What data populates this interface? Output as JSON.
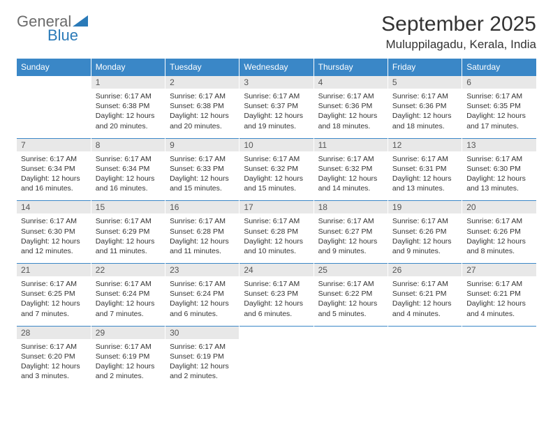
{
  "brand": {
    "part1": "General",
    "part2": "Blue"
  },
  "title": "September 2025",
  "location": "Muluppilagadu, Kerala, India",
  "colors": {
    "header_bg": "#3a87c7",
    "header_text": "#ffffff",
    "daynum_bg": "#e8e8e8",
    "border": "#3a87c7",
    "body_text": "#333333",
    "logo_gray": "#6b6b6b",
    "logo_blue": "#2a7ab8"
  },
  "weekdays": [
    "Sunday",
    "Monday",
    "Tuesday",
    "Wednesday",
    "Thursday",
    "Friday",
    "Saturday"
  ],
  "weeks": [
    [
      null,
      {
        "d": "1",
        "sr": "Sunrise: 6:17 AM",
        "ss": "Sunset: 6:38 PM",
        "dl1": "Daylight: 12 hours",
        "dl2": "and 20 minutes."
      },
      {
        "d": "2",
        "sr": "Sunrise: 6:17 AM",
        "ss": "Sunset: 6:38 PM",
        "dl1": "Daylight: 12 hours",
        "dl2": "and 20 minutes."
      },
      {
        "d": "3",
        "sr": "Sunrise: 6:17 AM",
        "ss": "Sunset: 6:37 PM",
        "dl1": "Daylight: 12 hours",
        "dl2": "and 19 minutes."
      },
      {
        "d": "4",
        "sr": "Sunrise: 6:17 AM",
        "ss": "Sunset: 6:36 PM",
        "dl1": "Daylight: 12 hours",
        "dl2": "and 18 minutes."
      },
      {
        "d": "5",
        "sr": "Sunrise: 6:17 AM",
        "ss": "Sunset: 6:36 PM",
        "dl1": "Daylight: 12 hours",
        "dl2": "and 18 minutes."
      },
      {
        "d": "6",
        "sr": "Sunrise: 6:17 AM",
        "ss": "Sunset: 6:35 PM",
        "dl1": "Daylight: 12 hours",
        "dl2": "and 17 minutes."
      }
    ],
    [
      {
        "d": "7",
        "sr": "Sunrise: 6:17 AM",
        "ss": "Sunset: 6:34 PM",
        "dl1": "Daylight: 12 hours",
        "dl2": "and 16 minutes."
      },
      {
        "d": "8",
        "sr": "Sunrise: 6:17 AM",
        "ss": "Sunset: 6:34 PM",
        "dl1": "Daylight: 12 hours",
        "dl2": "and 16 minutes."
      },
      {
        "d": "9",
        "sr": "Sunrise: 6:17 AM",
        "ss": "Sunset: 6:33 PM",
        "dl1": "Daylight: 12 hours",
        "dl2": "and 15 minutes."
      },
      {
        "d": "10",
        "sr": "Sunrise: 6:17 AM",
        "ss": "Sunset: 6:32 PM",
        "dl1": "Daylight: 12 hours",
        "dl2": "and 15 minutes."
      },
      {
        "d": "11",
        "sr": "Sunrise: 6:17 AM",
        "ss": "Sunset: 6:32 PM",
        "dl1": "Daylight: 12 hours",
        "dl2": "and 14 minutes."
      },
      {
        "d": "12",
        "sr": "Sunrise: 6:17 AM",
        "ss": "Sunset: 6:31 PM",
        "dl1": "Daylight: 12 hours",
        "dl2": "and 13 minutes."
      },
      {
        "d": "13",
        "sr": "Sunrise: 6:17 AM",
        "ss": "Sunset: 6:30 PM",
        "dl1": "Daylight: 12 hours",
        "dl2": "and 13 minutes."
      }
    ],
    [
      {
        "d": "14",
        "sr": "Sunrise: 6:17 AM",
        "ss": "Sunset: 6:30 PM",
        "dl1": "Daylight: 12 hours",
        "dl2": "and 12 minutes."
      },
      {
        "d": "15",
        "sr": "Sunrise: 6:17 AM",
        "ss": "Sunset: 6:29 PM",
        "dl1": "Daylight: 12 hours",
        "dl2": "and 11 minutes."
      },
      {
        "d": "16",
        "sr": "Sunrise: 6:17 AM",
        "ss": "Sunset: 6:28 PM",
        "dl1": "Daylight: 12 hours",
        "dl2": "and 11 minutes."
      },
      {
        "d": "17",
        "sr": "Sunrise: 6:17 AM",
        "ss": "Sunset: 6:28 PM",
        "dl1": "Daylight: 12 hours",
        "dl2": "and 10 minutes."
      },
      {
        "d": "18",
        "sr": "Sunrise: 6:17 AM",
        "ss": "Sunset: 6:27 PM",
        "dl1": "Daylight: 12 hours",
        "dl2": "and 9 minutes."
      },
      {
        "d": "19",
        "sr": "Sunrise: 6:17 AM",
        "ss": "Sunset: 6:26 PM",
        "dl1": "Daylight: 12 hours",
        "dl2": "and 9 minutes."
      },
      {
        "d": "20",
        "sr": "Sunrise: 6:17 AM",
        "ss": "Sunset: 6:26 PM",
        "dl1": "Daylight: 12 hours",
        "dl2": "and 8 minutes."
      }
    ],
    [
      {
        "d": "21",
        "sr": "Sunrise: 6:17 AM",
        "ss": "Sunset: 6:25 PM",
        "dl1": "Daylight: 12 hours",
        "dl2": "and 7 minutes."
      },
      {
        "d": "22",
        "sr": "Sunrise: 6:17 AM",
        "ss": "Sunset: 6:24 PM",
        "dl1": "Daylight: 12 hours",
        "dl2": "and 7 minutes."
      },
      {
        "d": "23",
        "sr": "Sunrise: 6:17 AM",
        "ss": "Sunset: 6:24 PM",
        "dl1": "Daylight: 12 hours",
        "dl2": "and 6 minutes."
      },
      {
        "d": "24",
        "sr": "Sunrise: 6:17 AM",
        "ss": "Sunset: 6:23 PM",
        "dl1": "Daylight: 12 hours",
        "dl2": "and 6 minutes."
      },
      {
        "d": "25",
        "sr": "Sunrise: 6:17 AM",
        "ss": "Sunset: 6:22 PM",
        "dl1": "Daylight: 12 hours",
        "dl2": "and 5 minutes."
      },
      {
        "d": "26",
        "sr": "Sunrise: 6:17 AM",
        "ss": "Sunset: 6:21 PM",
        "dl1": "Daylight: 12 hours",
        "dl2": "and 4 minutes."
      },
      {
        "d": "27",
        "sr": "Sunrise: 6:17 AM",
        "ss": "Sunset: 6:21 PM",
        "dl1": "Daylight: 12 hours",
        "dl2": "and 4 minutes."
      }
    ],
    [
      {
        "d": "28",
        "sr": "Sunrise: 6:17 AM",
        "ss": "Sunset: 6:20 PM",
        "dl1": "Daylight: 12 hours",
        "dl2": "and 3 minutes."
      },
      {
        "d": "29",
        "sr": "Sunrise: 6:17 AM",
        "ss": "Sunset: 6:19 PM",
        "dl1": "Daylight: 12 hours",
        "dl2": "and 2 minutes."
      },
      {
        "d": "30",
        "sr": "Sunrise: 6:17 AM",
        "ss": "Sunset: 6:19 PM",
        "dl1": "Daylight: 12 hours",
        "dl2": "and 2 minutes."
      },
      null,
      null,
      null,
      null
    ]
  ]
}
